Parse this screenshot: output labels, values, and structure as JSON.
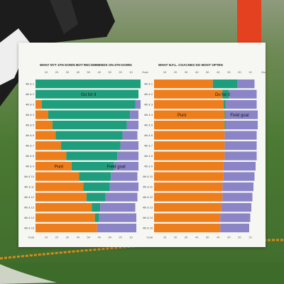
{
  "chart_data": [
    {
      "type": "bar",
      "title": "WHAT NYT 4TH DOWN BOT RECOMMENDS ON 4TH DOWN",
      "top_axis_label": "Goal",
      "bottom_axis_label": "Goal",
      "xlim": [
        0,
        99
      ],
      "x_ticks": [
        10,
        20,
        30,
        40,
        50,
        40,
        30,
        20,
        10
      ],
      "row_labels": [
        "4th & 1",
        "4th & 2",
        "4th & 3",
        "4th & 4",
        "4th & 5",
        "4th & 6",
        "4th & 7",
        "4th & 8",
        "4th & 9",
        "4th & 10",
        "4th & 11",
        "4th & 12",
        "4th & 13",
        "4th & 14",
        "4th & 15"
      ],
      "series_names": [
        "Go for it",
        "Punt",
        "Field goal"
      ],
      "rows": [
        {
          "punt": 0,
          "go": 99,
          "fg": 0
        },
        {
          "punt": 0,
          "go": 97,
          "fg": 0
        },
        {
          "punt": 6,
          "go": 88,
          "fg": 5
        },
        {
          "punt": 12,
          "go": 77,
          "fg": 8
        },
        {
          "punt": 16,
          "go": 70,
          "fg": 11
        },
        {
          "punt": 19,
          "go": 63,
          "fg": 14
        },
        {
          "punt": 24,
          "go": 56,
          "fg": 17
        },
        {
          "punt": 29,
          "go": 48,
          "fg": 20
        },
        {
          "punt": 34,
          "go": 40,
          "fg": 23
        },
        {
          "punt": 41,
          "go": 30,
          "fg": 25
        },
        {
          "punt": 45,
          "go": 25,
          "fg": 27
        },
        {
          "punt": 48,
          "go": 18,
          "fg": 30
        },
        {
          "punt": 53,
          "go": 8,
          "fg": 33
        },
        {
          "punt": 56,
          "go": 4,
          "fg": 35
        },
        {
          "punt": 58,
          "go": 0,
          "fg": 37
        }
      ]
    },
    {
      "type": "bar",
      "title": "WHAT N.F.L. COACHES DO MOST OFTEN",
      "top_axis_label": "Goal",
      "bottom_axis_label": "Goal",
      "xlim": [
        0,
        99
      ],
      "x_ticks": [
        10,
        20,
        30,
        40,
        50,
        40,
        30,
        20,
        10
      ],
      "row_labels": [
        "4th & 1",
        "4th & 2",
        "4th & 3",
        "4th & 4",
        "4th & 5",
        "4th & 6",
        "4th & 7",
        "4th & 8",
        "4th & 9",
        "4th & 10",
        "4th & 11",
        "4th & 12",
        "4th & 13",
        "4th & 14",
        "4th & 15"
      ],
      "series_names": [
        "Go for it",
        "Punt",
        "Field goal"
      ],
      "rows": [
        {
          "punt": 55,
          "go": 23,
          "fg": 16
        },
        {
          "punt": 64,
          "go": 6,
          "fg": 26
        },
        {
          "punt": 65,
          "go": 2,
          "fg": 29
        },
        {
          "punt": 66,
          "go": 1,
          "fg": 30
        },
        {
          "punt": 66,
          "go": 1,
          "fg": 30
        },
        {
          "punt": 66,
          "go": 0,
          "fg": 30
        },
        {
          "punt": 66,
          "go": 0,
          "fg": 30
        },
        {
          "punt": 66,
          "go": 0,
          "fg": 30
        },
        {
          "punt": 65,
          "go": 0,
          "fg": 30
        },
        {
          "punt": 65,
          "go": 0,
          "fg": 29
        },
        {
          "punt": 64,
          "go": 0,
          "fg": 29
        },
        {
          "punt": 64,
          "go": 0,
          "fg": 28
        },
        {
          "punt": 63,
          "go": 0,
          "fg": 28
        },
        {
          "punt": 62,
          "go": 0,
          "fg": 28
        },
        {
          "punt": 62,
          "go": 0,
          "fg": 27
        }
      ]
    }
  ],
  "colors": {
    "go": "#1f9e7d",
    "punt": "#ee7d1b",
    "fg": "#8b84c6",
    "photo_sky": "#9aa68c",
    "photo_grass": "#4f7a3a",
    "photo_pole": "#e3411f"
  },
  "icons": [
    "football-player",
    "yard-marker-pole",
    "chain-icon"
  ]
}
